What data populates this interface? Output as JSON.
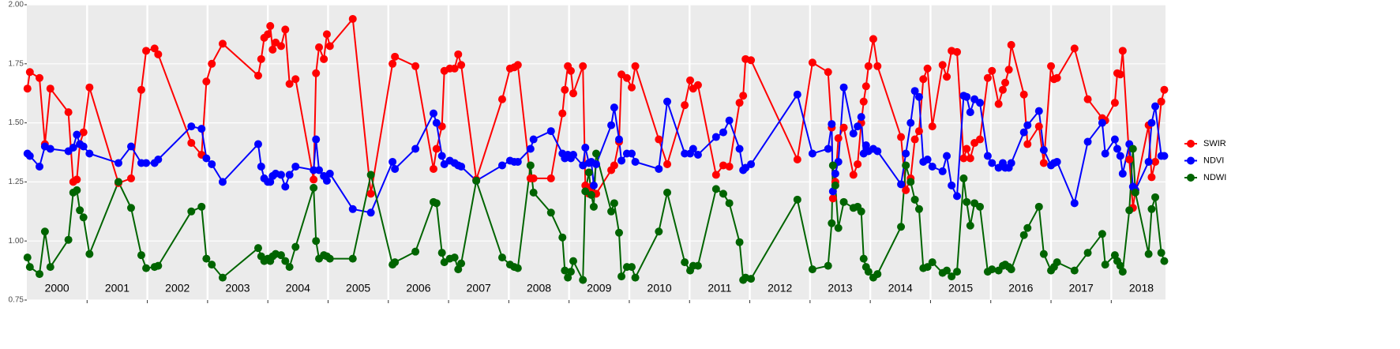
{
  "chart_data": {
    "type": "line",
    "x": [
      2000.01,
      2000.05,
      2000.21,
      2000.3,
      2000.39,
      2000.69,
      2000.77,
      2000.83,
      2000.88,
      2000.94,
      2001.04,
      2001.52,
      2001.73,
      2001.9,
      2001.98,
      2002.12,
      2002.18,
      2002.73,
      2002.9,
      2002.98,
      2003.07,
      2003.25,
      2003.84,
      2003.89,
      2003.94,
      2004.0,
      2004.04,
      2004.08,
      2004.13,
      2004.22,
      2004.29,
      2004.36,
      2004.46,
      2004.76,
      2004.8,
      2004.85,
      2004.93,
      2004.98,
      2005.03,
      2005.41,
      2005.71,
      2006.07,
      2006.11,
      2006.45,
      2006.75,
      2006.8,
      2006.89,
      2006.93,
      2007.02,
      2007.1,
      2007.16,
      2007.21,
      2007.46,
      2007.89,
      2008.02,
      2008.09,
      2008.15,
      2008.36,
      2008.41,
      2008.7,
      2008.89,
      2008.93,
      2008.98,
      2009.03,
      2009.07,
      2009.23,
      2009.27,
      2009.33,
      2009.37,
      2009.41,
      2009.45,
      2009.7,
      2009.75,
      2009.83,
      2009.87,
      2009.96,
      2010.04,
      2010.1,
      2010.49,
      2010.63,
      2010.92,
      2011.01,
      2011.06,
      2011.14,
      2011.44,
      2011.56,
      2011.66,
      2011.83,
      2011.89,
      2011.93,
      2012.02,
      2012.79,
      2013.04,
      2013.3,
      2013.36,
      2013.38,
      2013.42,
      2013.47,
      2013.56,
      2013.72,
      2013.79,
      2013.85,
      2013.89,
      2013.93,
      2013.97,
      2014.05,
      2014.12,
      2014.51,
      2014.59,
      2014.67,
      2014.74,
      2014.81,
      2014.88,
      2014.95,
      2015.03,
      2015.2,
      2015.27,
      2015.35,
      2015.44,
      2015.55,
      2015.6,
      2015.66,
      2015.73,
      2015.82,
      2015.95,
      2016.02,
      2016.13,
      2016.2,
      2016.24,
      2016.3,
      2016.34,
      2016.55,
      2016.61,
      2016.8,
      2016.88,
      2017.0,
      2017.05,
      2017.1,
      2017.39,
      2017.61,
      2017.85,
      2017.9,
      2018.06,
      2018.1,
      2018.15,
      2018.19,
      2018.3,
      2018.36,
      2018.4,
      2018.62,
      2018.67,
      2018.73,
      2018.83,
      2018.88
    ],
    "series": [
      {
        "name": "SWIR",
        "color": "#ff0000",
        "values": [
          1.645,
          1.715,
          1.69,
          1.41,
          1.645,
          1.545,
          1.25,
          1.26,
          1.41,
          1.46,
          1.65,
          1.245,
          1.265,
          1.64,
          1.805,
          1.815,
          1.79,
          1.415,
          1.365,
          1.675,
          1.75,
          1.835,
          1.7,
          1.77,
          1.86,
          1.875,
          1.91,
          1.81,
          1.84,
          1.825,
          1.895,
          1.665,
          1.685,
          1.26,
          1.71,
          1.82,
          1.77,
          1.875,
          1.825,
          1.94,
          1.2,
          1.75,
          1.78,
          1.74,
          1.305,
          1.39,
          1.485,
          1.72,
          1.73,
          1.73,
          1.79,
          1.745,
          1.26,
          1.6,
          1.73,
          1.735,
          1.745,
          1.265,
          1.265,
          1.265,
          1.54,
          1.64,
          1.74,
          1.72,
          1.625,
          1.74,
          1.235,
          1.2,
          1.23,
          1.2,
          1.2,
          1.3,
          1.32,
          1.42,
          1.705,
          1.69,
          1.65,
          1.74,
          1.43,
          1.325,
          1.575,
          1.68,
          1.645,
          1.66,
          1.28,
          1.32,
          1.315,
          1.585,
          1.615,
          1.77,
          1.765,
          1.345,
          1.755,
          1.715,
          1.48,
          1.18,
          1.25,
          1.435,
          1.48,
          1.28,
          1.325,
          1.5,
          1.59,
          1.655,
          1.74,
          1.855,
          1.74,
          1.44,
          1.215,
          1.265,
          1.43,
          1.465,
          1.685,
          1.73,
          1.485,
          1.745,
          1.695,
          1.805,
          1.8,
          1.35,
          1.39,
          1.35,
          1.415,
          1.43,
          1.69,
          1.72,
          1.58,
          1.64,
          1.67,
          1.725,
          1.83,
          1.62,
          1.41,
          1.485,
          1.33,
          1.74,
          1.685,
          1.69,
          1.815,
          1.6,
          1.52,
          1.51,
          1.585,
          1.71,
          1.705,
          1.805,
          1.345,
          1.14,
          1.215,
          1.49,
          1.27,
          1.335,
          1.59,
          1.64
        ]
      },
      {
        "name": "NDVI",
        "color": "#0000ff",
        "values": [
          1.37,
          1.36,
          1.315,
          1.4,
          1.39,
          1.38,
          1.395,
          1.45,
          1.41,
          1.4,
          1.37,
          1.33,
          1.4,
          1.33,
          1.33,
          1.33,
          1.345,
          1.485,
          1.475,
          1.35,
          1.325,
          1.25,
          1.41,
          1.315,
          1.265,
          1.25,
          1.25,
          1.275,
          1.285,
          1.28,
          1.23,
          1.28,
          1.315,
          1.3,
          1.43,
          1.3,
          1.275,
          1.255,
          1.285,
          1.135,
          1.12,
          1.335,
          1.305,
          1.39,
          1.54,
          1.5,
          1.36,
          1.325,
          1.34,
          1.33,
          1.32,
          1.315,
          1.255,
          1.32,
          1.34,
          1.335,
          1.335,
          1.39,
          1.43,
          1.465,
          1.37,
          1.35,
          1.365,
          1.35,
          1.365,
          1.32,
          1.395,
          1.33,
          1.335,
          1.235,
          1.325,
          1.49,
          1.565,
          1.43,
          1.34,
          1.37,
          1.37,
          1.335,
          1.305,
          1.59,
          1.37,
          1.37,
          1.39,
          1.365,
          1.44,
          1.46,
          1.51,
          1.39,
          1.3,
          1.31,
          1.325,
          1.62,
          1.37,
          1.39,
          1.495,
          1.21,
          1.285,
          1.335,
          1.65,
          1.455,
          1.485,
          1.525,
          1.37,
          1.405,
          1.38,
          1.39,
          1.38,
          1.24,
          1.37,
          1.5,
          1.635,
          1.61,
          1.335,
          1.345,
          1.315,
          1.295,
          1.36,
          1.235,
          1.19,
          1.615,
          1.61,
          1.545,
          1.6,
          1.585,
          1.36,
          1.33,
          1.31,
          1.33,
          1.31,
          1.31,
          1.33,
          1.46,
          1.49,
          1.55,
          1.385,
          1.32,
          1.33,
          1.335,
          1.16,
          1.42,
          1.5,
          1.37,
          1.43,
          1.39,
          1.36,
          1.285,
          1.41,
          1.23,
          1.215,
          1.335,
          1.5,
          1.57,
          1.36,
          1.36
        ]
      },
      {
        "name": "NDWI",
        "color": "#006400",
        "values": [
          0.93,
          0.89,
          0.86,
          1.04,
          0.89,
          1.005,
          1.205,
          1.215,
          1.13,
          1.1,
          0.945,
          1.25,
          1.14,
          0.94,
          0.885,
          0.89,
          0.895,
          1.125,
          1.145,
          0.925,
          0.9,
          0.845,
          0.97,
          0.935,
          0.915,
          0.925,
          0.915,
          0.935,
          0.945,
          0.94,
          0.915,
          0.89,
          0.975,
          1.225,
          1.0,
          0.925,
          0.94,
          0.935,
          0.925,
          0.925,
          1.28,
          0.9,
          0.91,
          0.955,
          1.165,
          1.16,
          0.95,
          0.91,
          0.925,
          0.93,
          0.88,
          0.905,
          1.255,
          0.93,
          0.9,
          0.89,
          0.885,
          1.32,
          1.205,
          1.12,
          1.015,
          0.875,
          0.845,
          0.87,
          0.915,
          0.835,
          1.21,
          1.29,
          1.195,
          1.145,
          1.37,
          1.125,
          1.16,
          1.035,
          0.85,
          0.89,
          0.89,
          0.845,
          1.04,
          1.205,
          0.91,
          0.875,
          0.895,
          0.895,
          1.22,
          1.2,
          1.16,
          0.995,
          0.835,
          0.845,
          0.84,
          1.175,
          0.88,
          0.895,
          1.075,
          1.32,
          1.235,
          1.055,
          1.165,
          1.14,
          1.145,
          1.125,
          0.925,
          0.89,
          0.87,
          0.845,
          0.86,
          1.06,
          1.32,
          1.25,
          1.175,
          1.135,
          0.885,
          0.89,
          0.91,
          0.865,
          0.875,
          0.85,
          0.87,
          1.265,
          1.165,
          1.065,
          1.16,
          1.145,
          0.87,
          0.88,
          0.875,
          0.895,
          0.9,
          0.89,
          0.88,
          1.025,
          1.055,
          1.145,
          0.945,
          0.875,
          0.89,
          0.91,
          0.875,
          0.95,
          1.03,
          0.9,
          0.94,
          0.915,
          0.895,
          0.87,
          1.13,
          1.39,
          1.205,
          0.945,
          1.135,
          1.185,
          0.95,
          0.915
        ]
      }
    ],
    "xlim": [
      2000,
      2018.9
    ],
    "xticks": [
      {
        "value": 2000.5,
        "label": "2000"
      },
      {
        "value": 2001.5,
        "label": "2001"
      },
      {
        "value": 2002.5,
        "label": "2002"
      },
      {
        "value": 2003.5,
        "label": "2003"
      },
      {
        "value": 2004.5,
        "label": "2004"
      },
      {
        "value": 2005.5,
        "label": "2005"
      },
      {
        "value": 2006.5,
        "label": "2006"
      },
      {
        "value": 2007.5,
        "label": "2007"
      },
      {
        "value": 2008.5,
        "label": "2008"
      },
      {
        "value": 2009.5,
        "label": "2009"
      },
      {
        "value": 2010.5,
        "label": "2010"
      },
      {
        "value": 2011.5,
        "label": "2011"
      },
      {
        "value": 2012.5,
        "label": "2012"
      },
      {
        "value": 2013.5,
        "label": "2013"
      },
      {
        "value": 2014.5,
        "label": "2014"
      },
      {
        "value": 2015.5,
        "label": "2015"
      },
      {
        "value": 2016.5,
        "label": "2016"
      },
      {
        "value": 2017.5,
        "label": "2017"
      },
      {
        "value": 2018.5,
        "label": "2018"
      }
    ],
    "xgrid": [
      2001,
      2002,
      2003,
      2004,
      2005,
      2006,
      2007,
      2008,
      2009,
      2010,
      2011,
      2012,
      2013,
      2014,
      2015,
      2016,
      2017,
      2018
    ],
    "ylim": [
      0.75,
      2.0
    ],
    "yticks": [
      0.75,
      {
        "value": 1,
        "label": "1.00"
      },
      1.25,
      {
        "value": 1.5,
        "label": "1.50"
      },
      1.75,
      {
        "value": 2,
        "label": "2.00"
      }
    ],
    "grid": true,
    "legend": "right"
  }
}
